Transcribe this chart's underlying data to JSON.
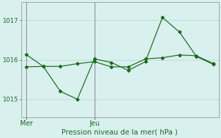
{
  "title": "Pression niveau de la mer( hPa )",
  "bg_color": "#d8f0ee",
  "grid_color": "#c0deda",
  "line_color": "#1a6b1a",
  "spine_color": "#a0a0a0",
  "ylim": [
    1014.55,
    1017.45
  ],
  "yticks": [
    1015,
    1016,
    1017
  ],
  "xlim": [
    -0.3,
    11.3
  ],
  "line1_x": [
    0,
    1,
    2,
    3,
    4,
    5,
    6,
    7,
    8,
    9,
    10,
    11
  ],
  "line1_y": [
    1016.13,
    1015.83,
    1015.2,
    1015.0,
    1016.02,
    1015.93,
    1015.73,
    1015.95,
    1017.07,
    1016.7,
    1016.08,
    1015.88
  ],
  "line2_x": [
    0,
    1,
    2,
    3,
    4,
    5,
    6,
    7,
    8,
    9,
    10,
    11
  ],
  "line2_y": [
    1015.82,
    1015.83,
    1015.83,
    1015.9,
    1015.95,
    1015.82,
    1015.82,
    1016.02,
    1016.05,
    1016.12,
    1016.1,
    1015.9
  ],
  "mer_x": 0,
  "jeu_x": 4,
  "vline_color": "#909090",
  "xtick_labels": [
    "Mer",
    "Jeu"
  ],
  "xtick_positions": [
    0,
    4
  ]
}
